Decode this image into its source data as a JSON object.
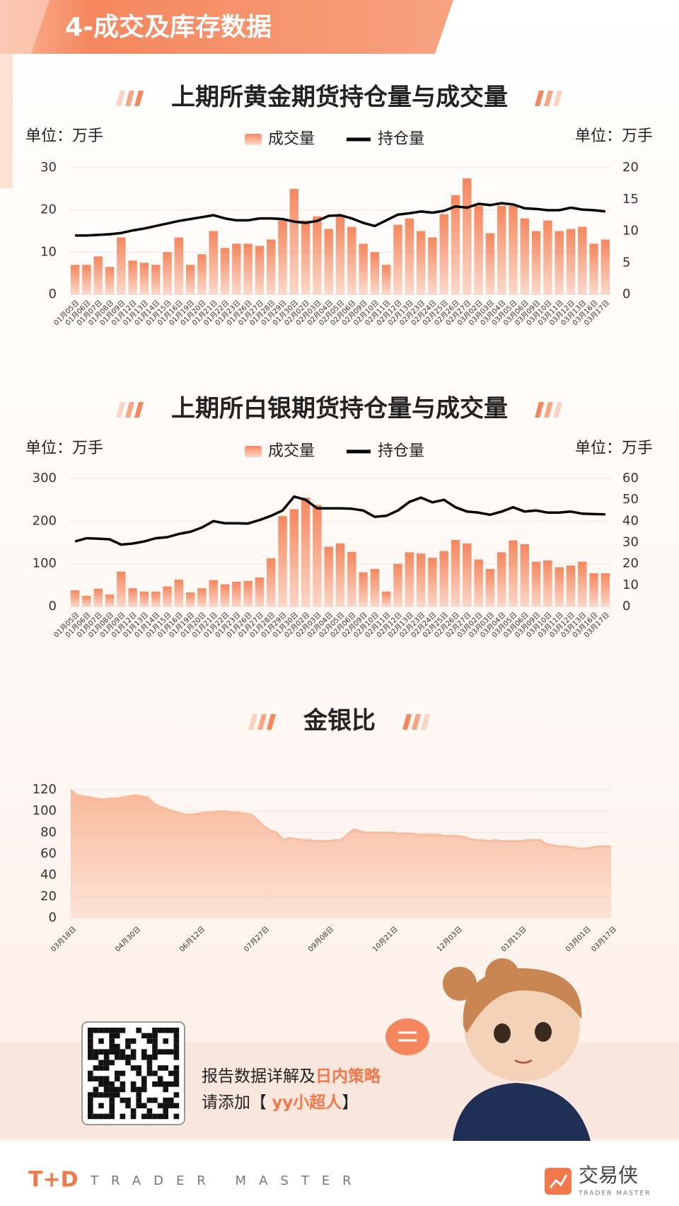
{
  "header": {
    "title": "4-成交及库存数据"
  },
  "chart_data": [
    {
      "type": "bar_line",
      "title": "上期所黄金期货持仓量与成交量",
      "y_label": "单位：万手",
      "y2_label": "单位：万手",
      "categories": [
        "01月05日",
        "01月06日",
        "01月07日",
        "01月08日",
        "01月09日",
        "01月12日",
        "01月13日",
        "01月14日",
        "01月15日",
        "01月16日",
        "01月19日",
        "01月20日",
        "01月21日",
        "01月22日",
        "01月23日",
        "01月26日",
        "01月27日",
        "01月28日",
        "01月29日",
        "01月30日",
        "02月02日",
        "02月03日",
        "02月04日",
        "02月05日",
        "02月06日",
        "02月09日",
        "02月10日",
        "02月11日",
        "02月12日",
        "02月13日",
        "02月23日",
        "02月24日",
        "02月25日",
        "02月26日",
        "02月27日",
        "03月02日",
        "03月03日",
        "03月04日",
        "03月05日",
        "03月06日",
        "03月09日",
        "03月10日",
        "03月11日",
        "03月12日",
        "03月13日",
        "03月16日",
        "03月17日"
      ],
      "series": [
        {
          "name": "成交量",
          "color": "#f5875e",
          "values": [
            7,
            7,
            9,
            6.5,
            13.5,
            8,
            7.5,
            7,
            10,
            13.5,
            7,
            9.5,
            15,
            11,
            12,
            12,
            11.5,
            13,
            17.5,
            25,
            17.5,
            18.5,
            15.5,
            18.5,
            16,
            12,
            10,
            7,
            16.5,
            18,
            15,
            13.5,
            19,
            23.5,
            27.5,
            21,
            14.5,
            21,
            21,
            18,
            15,
            17.5,
            15,
            15.5,
            16,
            12,
            13
          ]
        },
        {
          "name": "持仓量",
          "color": "#000000",
          "axis": "y2",
          "values": [
            9.3,
            9.3,
            9.4,
            9.5,
            9.7,
            10.1,
            10.4,
            10.8,
            11.2,
            11.6,
            11.9,
            12.2,
            12.5,
            12.0,
            11.7,
            11.7,
            12.0,
            12.0,
            11.9,
            11.5,
            11.3,
            11.6,
            12.4,
            12.5,
            12.0,
            11.3,
            10.8,
            11.7,
            12.6,
            12.8,
            13.1,
            12.9,
            13.2,
            13.9,
            13.7,
            14.3,
            14.1,
            14.4,
            14.2,
            13.6,
            13.5,
            13.3,
            13.3,
            13.7,
            13.4,
            13.3,
            13.1
          ]
        }
      ],
      "ylim": [
        0,
        30
      ],
      "yticks": [
        0,
        10,
        20,
        30
      ],
      "y2lim": [
        0,
        20
      ],
      "y2ticks": [
        0,
        5,
        10,
        15,
        20
      ],
      "grid": true
    },
    {
      "type": "bar_line",
      "title": "上期所白银期货持仓量与成交量",
      "y_label": "单位：万手",
      "y2_label": "单位：万手",
      "categories": [
        "01月05日",
        "01月06日",
        "01月07日",
        "01月08日",
        "01月09日",
        "01月12日",
        "01月13日",
        "01月14日",
        "01月15日",
        "01月16日",
        "01月19日",
        "01月20日",
        "01月21日",
        "01月22日",
        "01月23日",
        "01月26日",
        "01月27日",
        "01月28日",
        "01月29日",
        "01月30日",
        "02月02日",
        "02月03日",
        "02月04日",
        "02月05日",
        "02月06日",
        "02月09日",
        "02月10日",
        "02月11日",
        "02月12日",
        "02月13日",
        "02月23日",
        "02月24日",
        "02月25日",
        "02月26日",
        "02月27日",
        "03月02日",
        "03月03日",
        "03月04日",
        "03月05日",
        "03月06日",
        "03月09日",
        "03月10日",
        "03月11日",
        "03月12日",
        "03月13日",
        "03月16日",
        "03月17日"
      ],
      "series": [
        {
          "name": "成交量",
          "color": "#f5875e",
          "values": [
            38,
            25,
            42,
            28,
            82,
            43,
            35,
            35,
            47,
            63,
            33,
            43,
            62,
            52,
            58,
            60,
            68,
            113,
            212,
            228,
            255,
            238,
            140,
            148,
            128,
            80,
            88,
            35,
            100,
            127,
            124,
            114,
            130,
            156,
            148,
            110,
            88,
            127,
            155,
            146,
            105,
            108,
            92,
            96,
            105,
            78,
            78
          ]
        },
        {
          "name": "持仓量",
          "color": "#000000",
          "axis": "y2",
          "values": [
            30.5,
            32,
            31.8,
            31.5,
            29,
            29.5,
            30.5,
            32,
            32.5,
            34,
            35,
            37,
            40,
            39,
            39,
            38.9,
            40.5,
            42.5,
            45,
            51.5,
            50,
            46,
            46,
            46,
            45.8,
            45,
            42,
            42.5,
            45,
            49,
            51,
            48.8,
            50,
            46.5,
            44.5,
            44,
            43,
            44.5,
            46.5,
            44.5,
            45,
            44,
            44,
            44.5,
            43.5,
            43.3,
            43.2
          ]
        }
      ],
      "ylim": [
        0,
        300
      ],
      "yticks": [
        0,
        100,
        200,
        300
      ],
      "y2lim": [
        0,
        60
      ],
      "y2ticks": [
        0,
        10,
        20,
        30,
        40,
        50,
        60
      ],
      "grid": true
    },
    {
      "type": "area",
      "title": "金银比",
      "color": "#f9b99a",
      "categories": [
        "03月18日",
        null,
        null,
        null,
        null,
        null,
        null,
        null,
        null,
        null,
        "04月30日",
        null,
        null,
        null,
        null,
        null,
        null,
        null,
        null,
        null,
        "06月12日",
        null,
        null,
        null,
        null,
        null,
        null,
        null,
        null,
        null,
        "07月27日",
        null,
        null,
        null,
        null,
        null,
        null,
        null,
        null,
        null,
        "09月08日",
        null,
        null,
        null,
        null,
        null,
        null,
        null,
        null,
        null,
        "10月21日",
        null,
        null,
        null,
        null,
        null,
        null,
        null,
        null,
        null,
        "12月03日",
        null,
        null,
        null,
        null,
        null,
        null,
        null,
        null,
        null,
        "01月15日",
        null,
        null,
        null,
        null,
        null,
        null,
        null,
        null,
        null,
        "03月01日",
        null,
        null,
        null,
        "03月17日"
      ],
      "values": [
        120,
        115,
        114,
        113,
        112,
        111,
        112,
        112,
        113,
        114,
        115,
        114,
        113,
        107,
        104,
        102,
        100,
        98,
        97,
        97,
        98,
        99,
        99,
        100,
        100,
        99,
        99,
        98,
        97,
        92,
        86,
        82,
        80,
        73,
        75,
        74,
        73,
        73,
        72,
        72,
        72,
        73,
        73,
        78,
        83,
        81,
        80,
        80,
        80,
        80,
        80,
        79,
        79,
        79,
        78,
        78,
        78,
        78,
        77,
        77,
        77,
        76,
        74,
        73,
        73,
        72,
        73,
        72,
        72,
        72,
        72,
        73,
        73,
        73,
        69,
        68,
        67,
        67,
        66,
        65,
        65,
        66,
        67,
        67,
        67
      ],
      "ylim": [
        0,
        120
      ],
      "yticks": [
        0,
        20,
        40,
        60,
        80,
        100,
        120
      ],
      "grid": true
    }
  ],
  "footer": {
    "line1": [
      "报告数据详解及",
      "日内策略"
    ],
    "line2": [
      "请添加【 ",
      "yy小超人",
      "】"
    ],
    "brand": "T+D",
    "brand_sub": "TRADER MASTER",
    "logo": "交易侠",
    "logo_sub": "TRADER MASTER"
  }
}
